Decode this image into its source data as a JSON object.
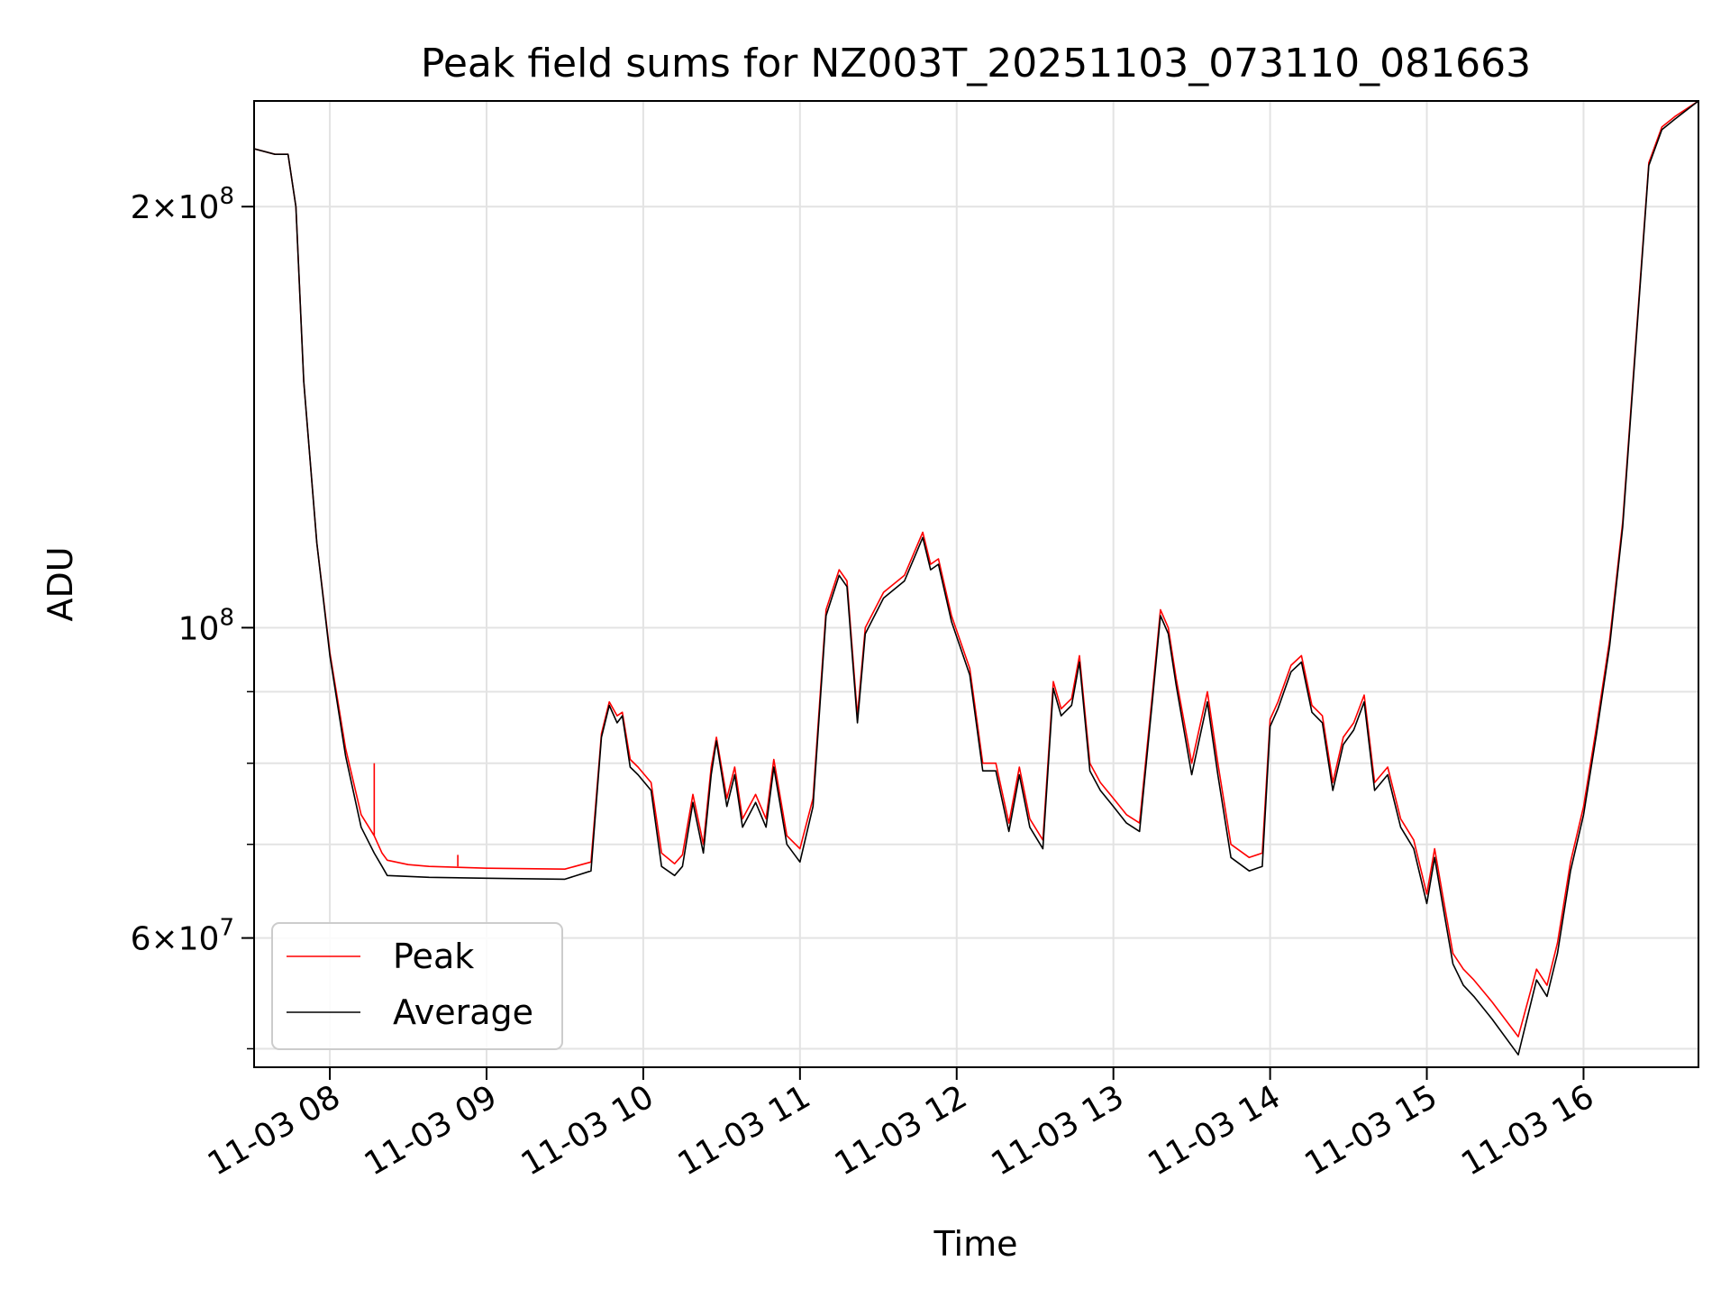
{
  "chart_data": {
    "type": "line",
    "title": "Peak field sums for NZ003T_20251103_073110_081663",
    "xlabel": "Time",
    "ylabel": "ADU",
    "yscale": "log",
    "grid": true,
    "legend_position": "lower-left",
    "x_ticks": [
      "11-03 08",
      "11-03 09",
      "11-03 10",
      "11-03 11",
      "11-03 12",
      "11-03 13",
      "11-03 14",
      "11-03 15",
      "11-03 16"
    ],
    "x_tick_values": [
      "2025-11-03 08:00",
      "2025-11-03 09:00",
      "2025-11-03 10:00",
      "2025-11-03 11:00",
      "2025-11-03 12:00",
      "2025-11-03 13:00",
      "2025-11-03 14:00",
      "2025-11-03 15:00",
      "2025-11-03 16:00"
    ],
    "xlim": [
      "2025-11-03 07:31",
      "2025-11-03 16:44"
    ],
    "ylim": [
      48500000,
      238000000
    ],
    "y_major_ticks": [
      {
        "value": 60000000,
        "base": "6",
        "exp": "7"
      },
      {
        "value": 100000000,
        "base": "",
        "exp": "8"
      },
      {
        "value": 200000000,
        "base": "2",
        "exp": "8"
      }
    ],
    "y_minor_gridlines": [
      50000000,
      60000000,
      70000000,
      80000000,
      90000000,
      100000000,
      200000000
    ],
    "series": [
      {
        "name": "Peak",
        "color": "#ff0000",
        "x": [
          "2025-11-03 07:31",
          "2025-11-03 07:39",
          "2025-11-03 07:44",
          "2025-11-03 07:47",
          "2025-11-03 07:50",
          "2025-11-03 07:55",
          "2025-11-03 08:00",
          "2025-11-03 08:06",
          "2025-11-03 08:12",
          "2025-11-03 08:17",
          "2025-11-03 08:20",
          "2025-11-03 08:22",
          "2025-11-03 08:30",
          "2025-11-03 08:38",
          "2025-11-03 09:00",
          "2025-11-03 09:30",
          "2025-11-03 09:40",
          "2025-11-03 09:44",
          "2025-11-03 09:47",
          "2025-11-03 09:50",
          "2025-11-03 09:52",
          "2025-11-03 09:55",
          "2025-11-03 09:58",
          "2025-11-03 10:03",
          "2025-11-03 10:07",
          "2025-11-03 10:12",
          "2025-11-03 10:15",
          "2025-11-03 10:19",
          "2025-11-03 10:23",
          "2025-11-03 10:26",
          "2025-11-03 10:28",
          "2025-11-03 10:32",
          "2025-11-03 10:35",
          "2025-11-03 10:38",
          "2025-11-03 10:43",
          "2025-11-03 10:47",
          "2025-11-03 10:50",
          "2025-11-03 10:55",
          "2025-11-03 11:00",
          "2025-11-03 11:05",
          "2025-11-03 11:10",
          "2025-11-03 11:15",
          "2025-11-03 11:18",
          "2025-11-03 11:22",
          "2025-11-03 11:25",
          "2025-11-03 11:32",
          "2025-11-03 11:40",
          "2025-11-03 11:47",
          "2025-11-03 11:50",
          "2025-11-03 11:53",
          "2025-11-03 11:58",
          "2025-11-03 12:05",
          "2025-11-03 12:10",
          "2025-11-03 12:15",
          "2025-11-03 12:20",
          "2025-11-03 12:24",
          "2025-11-03 12:28",
          "2025-11-03 12:33",
          "2025-11-03 12:37",
          "2025-11-03 12:40",
          "2025-11-03 12:44",
          "2025-11-03 12:47",
          "2025-11-03 12:51",
          "2025-11-03 12:55",
          "2025-11-03 13:00",
          "2025-11-03 13:05",
          "2025-11-03 13:10",
          "2025-11-03 13:15",
          "2025-11-03 13:18",
          "2025-11-03 13:21",
          "2025-11-03 13:24",
          "2025-11-03 13:30",
          "2025-11-03 13:36",
          "2025-11-03 13:40",
          "2025-11-03 13:45",
          "2025-11-03 13:52",
          "2025-11-03 13:57",
          "2025-11-03 14:00",
          "2025-11-03 14:03",
          "2025-11-03 14:08",
          "2025-11-03 14:12",
          "2025-11-03 14:16",
          "2025-11-03 14:20",
          "2025-11-03 14:24",
          "2025-11-03 14:28",
          "2025-11-03 14:32",
          "2025-11-03 14:36",
          "2025-11-03 14:40",
          "2025-11-03 14:45",
          "2025-11-03 14:50",
          "2025-11-03 14:55",
          "2025-11-03 15:00",
          "2025-11-03 15:03",
          "2025-11-03 15:06",
          "2025-11-03 15:10",
          "2025-11-03 15:14",
          "2025-11-03 15:18",
          "2025-11-03 15:25",
          "2025-11-03 15:35",
          "2025-11-03 15:42",
          "2025-11-03 15:46",
          "2025-11-03 15:50",
          "2025-11-03 15:55",
          "2025-11-03 16:00",
          "2025-11-03 16:05",
          "2025-11-03 16:10",
          "2025-11-03 16:15",
          "2025-11-03 16:20",
          "2025-11-03 16:25",
          "2025-11-03 16:30",
          "2025-11-03 16:35",
          "2025-11-03 16:44"
        ],
        "y": [
          220000000,
          218000000,
          218000000,
          200000000,
          150000000,
          115000000,
          96000000,
          82000000,
          73500000,
          71000000,
          69000000,
          68200000,
          67700000,
          67500000,
          67300000,
          67200000,
          68000000,
          84000000,
          88500000,
          86500000,
          87000000,
          80500000,
          79500000,
          77500000,
          69000000,
          67800000,
          68800000,
          76000000,
          70000000,
          79500000,
          83500000,
          75500000,
          79500000,
          73000000,
          76000000,
          73000000,
          80500000,
          71000000,
          69500000,
          75500000,
          103000000,
          110000000,
          108000000,
          86500000,
          100000000,
          106000000,
          109000000,
          117000000,
          111000000,
          112000000,
          102000000,
          93500000,
          80000000,
          80000000,
          72500000,
          79500000,
          73000000,
          70500000,
          91500000,
          87500000,
          89000000,
          95500000,
          80000000,
          77500000,
          75500000,
          73500000,
          72500000,
          90000000,
          103000000,
          100000000,
          92000000,
          80000000,
          90000000,
          80000000,
          70000000,
          68500000,
          69000000,
          86000000,
          88500000,
          94000000,
          95500000,
          88000000,
          86500000,
          77500000,
          83500000,
          85500000,
          89500000,
          77500000,
          79500000,
          73000000,
          70500000,
          64500000,
          69500000,
          64500000,
          58500000,
          57000000,
          56000000,
          54000000,
          51000000,
          57000000,
          55500000,
          59500000,
          68000000,
          74500000,
          85000000,
          98000000,
          119000000,
          160000000,
          215000000,
          228000000,
          232000000,
          238000000
        ]
      },
      {
        "name": "Average",
        "color": "#000000",
        "x": [
          "2025-11-03 07:31",
          "2025-11-03 07:39",
          "2025-11-03 07:44",
          "2025-11-03 07:47",
          "2025-11-03 07:50",
          "2025-11-03 07:55",
          "2025-11-03 08:00",
          "2025-11-03 08:06",
          "2025-11-03 08:12",
          "2025-11-03 08:17",
          "2025-11-03 08:20",
          "2025-11-03 08:22",
          "2025-11-03 08:30",
          "2025-11-03 08:38",
          "2025-11-03 09:00",
          "2025-11-03 09:30",
          "2025-11-03 09:40",
          "2025-11-03 09:44",
          "2025-11-03 09:47",
          "2025-11-03 09:50",
          "2025-11-03 09:52",
          "2025-11-03 09:55",
          "2025-11-03 09:58",
          "2025-11-03 10:03",
          "2025-11-03 10:07",
          "2025-11-03 10:12",
          "2025-11-03 10:15",
          "2025-11-03 10:19",
          "2025-11-03 10:23",
          "2025-11-03 10:26",
          "2025-11-03 10:28",
          "2025-11-03 10:32",
          "2025-11-03 10:35",
          "2025-11-03 10:38",
          "2025-11-03 10:43",
          "2025-11-03 10:47",
          "2025-11-03 10:50",
          "2025-11-03 10:55",
          "2025-11-03 11:00",
          "2025-11-03 11:05",
          "2025-11-03 11:10",
          "2025-11-03 11:15",
          "2025-11-03 11:18",
          "2025-11-03 11:22",
          "2025-11-03 11:25",
          "2025-11-03 11:32",
          "2025-11-03 11:40",
          "2025-11-03 11:47",
          "2025-11-03 11:50",
          "2025-11-03 11:53",
          "2025-11-03 11:58",
          "2025-11-03 12:05",
          "2025-11-03 12:10",
          "2025-11-03 12:15",
          "2025-11-03 12:20",
          "2025-11-03 12:24",
          "2025-11-03 12:28",
          "2025-11-03 12:33",
          "2025-11-03 12:37",
          "2025-11-03 12:40",
          "2025-11-03 12:44",
          "2025-11-03 12:47",
          "2025-11-03 12:51",
          "2025-11-03 12:55",
          "2025-11-03 13:00",
          "2025-11-03 13:05",
          "2025-11-03 13:10",
          "2025-11-03 13:15",
          "2025-11-03 13:18",
          "2025-11-03 13:21",
          "2025-11-03 13:24",
          "2025-11-03 13:30",
          "2025-11-03 13:36",
          "2025-11-03 13:40",
          "2025-11-03 13:45",
          "2025-11-03 13:52",
          "2025-11-03 13:57",
          "2025-11-03 14:00",
          "2025-11-03 14:03",
          "2025-11-03 14:08",
          "2025-11-03 14:12",
          "2025-11-03 14:16",
          "2025-11-03 14:20",
          "2025-11-03 14:24",
          "2025-11-03 14:28",
          "2025-11-03 14:32",
          "2025-11-03 14:36",
          "2025-11-03 14:40",
          "2025-11-03 14:45",
          "2025-11-03 14:50",
          "2025-11-03 14:55",
          "2025-11-03 15:00",
          "2025-11-03 15:03",
          "2025-11-03 15:06",
          "2025-11-03 15:10",
          "2025-11-03 15:14",
          "2025-11-03 15:18",
          "2025-11-03 15:25",
          "2025-11-03 15:35",
          "2025-11-03 15:42",
          "2025-11-03 15:46",
          "2025-11-03 15:50",
          "2025-11-03 15:55",
          "2025-11-03 16:00",
          "2025-11-03 16:05",
          "2025-11-03 16:10",
          "2025-11-03 16:15",
          "2025-11-03 16:20",
          "2025-11-03 16:25",
          "2025-11-03 16:30",
          "2025-11-03 16:35",
          "2025-11-03 16:44"
        ],
        "y": [
          220000000,
          218000000,
          218000000,
          200000000,
          150000000,
          115000000,
          95500000,
          81000000,
          72000000,
          69000000,
          67500000,
          66500000,
          66400000,
          66300000,
          66200000,
          66100000,
          67000000,
          83500000,
          88000000,
          85500000,
          86500000,
          79500000,
          78500000,
          76500000,
          67500000,
          66500000,
          67500000,
          75000000,
          69000000,
          78500000,
          83000000,
          74500000,
          78500000,
          72000000,
          75000000,
          72000000,
          79500000,
          70000000,
          68000000,
          74500000,
          102000000,
          109000000,
          107000000,
          85500000,
          99000000,
          105000000,
          108000000,
          116000000,
          110000000,
          111000000,
          101000000,
          92500000,
          79000000,
          79000000,
          71500000,
          78500000,
          72000000,
          69500000,
          90500000,
          86500000,
          88000000,
          94500000,
          79000000,
          76500000,
          74500000,
          72500000,
          71500000,
          89000000,
          102000000,
          99000000,
          91000000,
          78500000,
          88500000,
          78500000,
          68500000,
          67000000,
          67500000,
          85000000,
          87500000,
          93000000,
          94500000,
          87000000,
          85500000,
          76500000,
          82500000,
          84500000,
          88500000,
          76500000,
          78500000,
          72000000,
          69500000,
          63500000,
          68500000,
          63500000,
          57500000,
          55500000,
          54500000,
          52500000,
          49500000,
          56000000,
          54500000,
          58500000,
          67000000,
          73500000,
          84000000,
          97000000,
          118000000,
          159000000,
          214000000,
          227000000,
          231000000,
          238000000
        ]
      }
    ],
    "annotations": [
      {
        "series": "Peak",
        "type": "spike",
        "x": "2025-11-03 08:17",
        "y": 80000000
      },
      {
        "series": "Peak",
        "type": "spike",
        "x": "2025-11-03 08:49",
        "y": 68800000
      }
    ]
  }
}
